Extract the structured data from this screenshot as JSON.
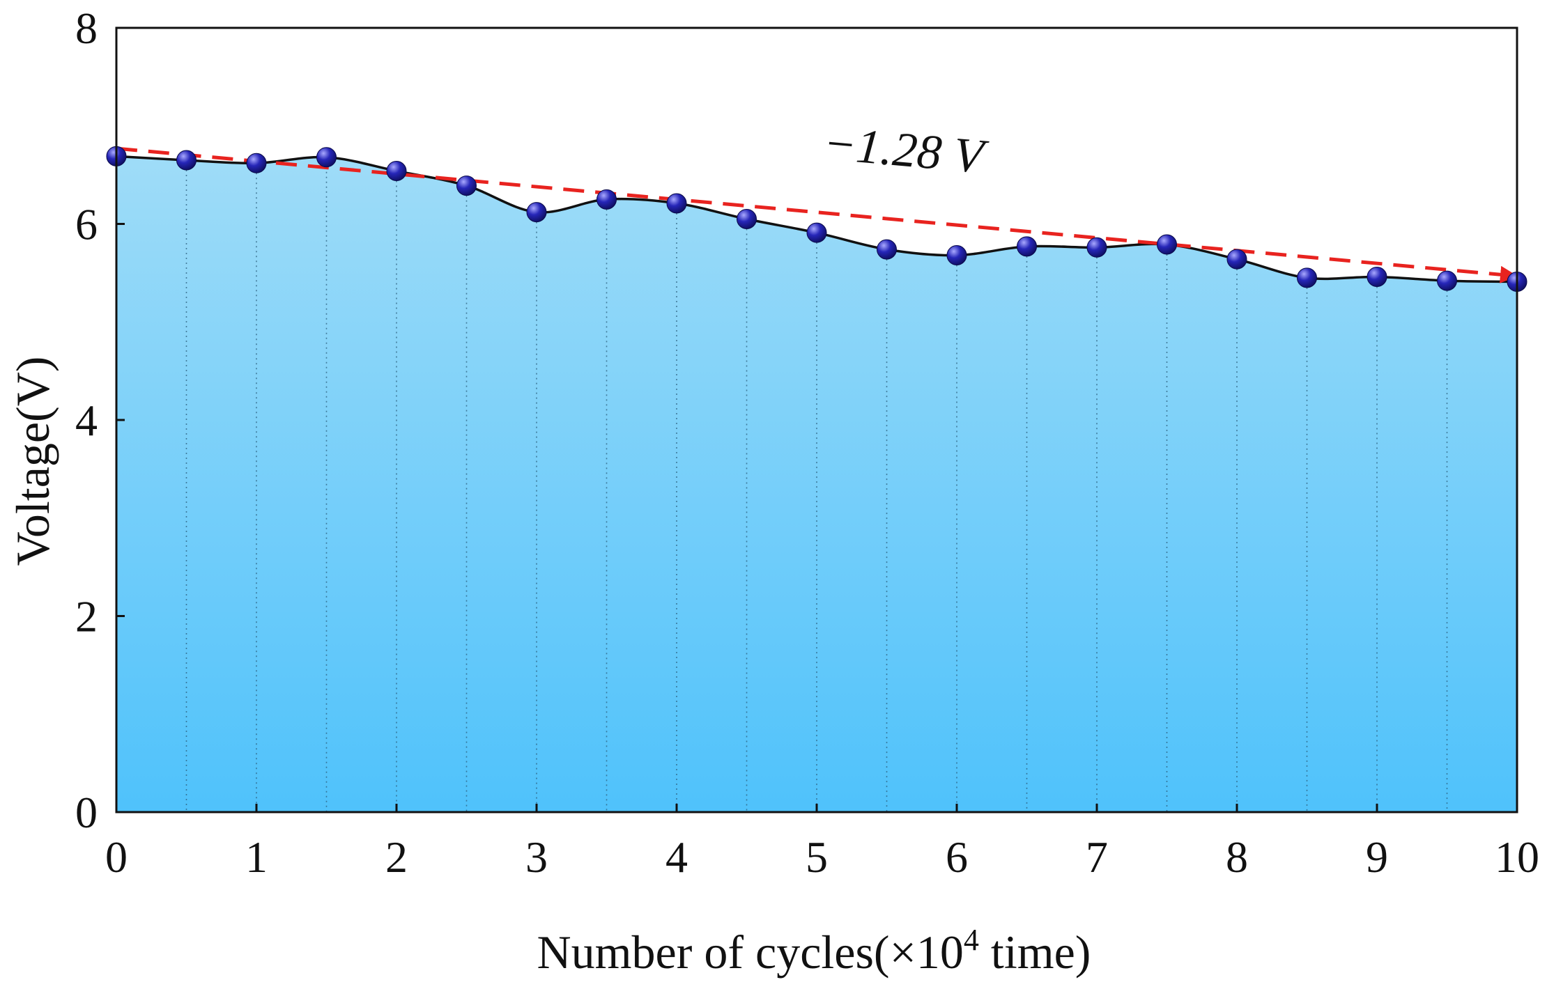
{
  "chart_data": {
    "type": "area",
    "title": "",
    "xlabel_prefix": "Number of cycles(×10",
    "xlabel_sup": "4",
    "xlabel_suffix": " time)",
    "ylabel": "Voltage(V)",
    "xlim": [
      0,
      10
    ],
    "ylim": [
      0,
      8
    ],
    "x_ticks": [
      "0",
      "1",
      "2",
      "3",
      "4",
      "5",
      "6",
      "7",
      "8",
      "9",
      "10"
    ],
    "y_ticks": [
      "0",
      "2",
      "4",
      "6",
      "8"
    ],
    "x": [
      0,
      0.5,
      1,
      1.5,
      2,
      2.5,
      3,
      3.5,
      4,
      4.5,
      5,
      5.5,
      6,
      6.5,
      7,
      7.5,
      8,
      8.5,
      9,
      9.5,
      10
    ],
    "series": [
      {
        "name": "Voltage",
        "values": [
          6.69,
          6.65,
          6.62,
          6.68,
          6.54,
          6.39,
          6.12,
          6.25,
          6.21,
          6.05,
          5.91,
          5.74,
          5.68,
          5.77,
          5.76,
          5.79,
          5.64,
          5.45,
          5.46,
          5.42,
          5.41
        ]
      }
    ],
    "trend_line": {
      "x": [
        0,
        10
      ],
      "y": [
        6.77,
        5.47
      ]
    },
    "annotation": "−1.28 V",
    "grid": "vertical dotted lines at every data point",
    "colors": {
      "fill_top": "#9fdcf8",
      "fill_bottom": "#4fc2fb",
      "line": "#111111",
      "marker": "#1a1a9c",
      "marker_highlight": "#a9a9ff",
      "trend": "#e8231f",
      "grid": "#2a5c7a"
    }
  }
}
